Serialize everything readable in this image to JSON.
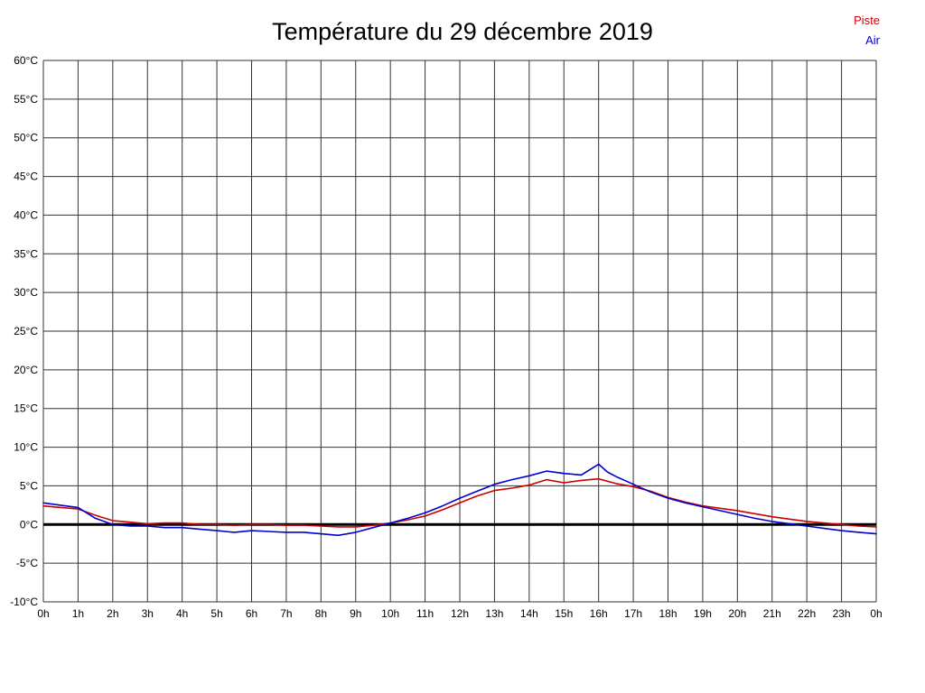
{
  "title": "Température du 29 décembre 2019",
  "legend": [
    {
      "label": "Piste",
      "color": "#cc0000"
    },
    {
      "label": "Air",
      "color": "#0000cc"
    }
  ],
  "chart_data": {
    "type": "line",
    "title": "Température du 29 décembre 2019",
    "xlabel": "",
    "ylabel": "",
    "xlim": [
      0,
      24
    ],
    "ylim": [
      -10,
      60
    ],
    "grid": true,
    "grid_color": "#333333",
    "zero_line": true,
    "zero_line_color": "#000000",
    "legend_position": "top-right",
    "x_ticks": [
      0,
      1,
      2,
      3,
      4,
      5,
      6,
      7,
      8,
      9,
      10,
      11,
      12,
      13,
      14,
      15,
      16,
      17,
      18,
      19,
      20,
      21,
      22,
      23,
      24
    ],
    "x_tick_labels": [
      "0h",
      "1h",
      "2h",
      "3h",
      "4h",
      "5h",
      "6h",
      "7h",
      "8h",
      "9h",
      "10h",
      "11h",
      "12h",
      "13h",
      "14h",
      "15h",
      "16h",
      "17h",
      "18h",
      "19h",
      "20h",
      "21h",
      "22h",
      "23h",
      "0h"
    ],
    "y_ticks": [
      -10,
      -5,
      0,
      5,
      10,
      15,
      20,
      25,
      30,
      35,
      40,
      45,
      50,
      55,
      60
    ],
    "y_tick_labels": [
      "-10°C",
      "-5°C",
      "0°C",
      "5°C",
      "10°C",
      "15°C",
      "20°C",
      "25°C",
      "30°C",
      "35°C",
      "40°C",
      "45°C",
      "50°C",
      "55°C",
      "60°C"
    ],
    "series": [
      {
        "name": "Piste",
        "color": "#cc0000",
        "x": [
          0,
          0.5,
          1,
          1.5,
          2,
          2.5,
          3,
          3.5,
          4,
          4.5,
          5,
          5.5,
          6,
          6.5,
          7,
          7.5,
          8,
          8.5,
          9,
          9.5,
          10,
          10.5,
          11,
          11.5,
          12,
          12.5,
          13,
          13.5,
          14,
          14.5,
          15,
          15.5,
          16,
          16.5,
          17,
          17.5,
          18,
          18.5,
          19,
          19.5,
          20,
          20.5,
          21,
          21.5,
          22,
          22.5,
          23,
          23.5,
          24
        ],
        "y": [
          2.4,
          2.2,
          2.0,
          1.2,
          0.5,
          0.3,
          0.1,
          0.2,
          0.2,
          0.0,
          0.0,
          -0.1,
          0.0,
          0.0,
          -0.1,
          -0.1,
          -0.2,
          -0.3,
          -0.3,
          -0.1,
          0.2,
          0.6,
          1.1,
          1.9,
          2.8,
          3.7,
          4.4,
          4.7,
          5.1,
          5.8,
          5.4,
          5.7,
          5.9,
          5.3,
          4.9,
          4.3,
          3.5,
          2.9,
          2.4,
          2.1,
          1.8,
          1.4,
          1.0,
          0.7,
          0.4,
          0.2,
          0.0,
          -0.2,
          -0.3
        ]
      },
      {
        "name": "Air",
        "color": "#0000cc",
        "x": [
          0,
          0.5,
          1,
          1.5,
          2,
          2.5,
          3,
          3.5,
          4,
          4.5,
          5,
          5.5,
          6,
          6.5,
          7,
          7.5,
          8,
          8.5,
          9,
          9.5,
          10,
          10.5,
          11,
          11.5,
          12,
          12.5,
          13,
          13.5,
          14,
          14.5,
          15,
          15.5,
          16,
          16.25,
          16.5,
          17,
          17.5,
          18,
          18.5,
          19,
          19.5,
          20,
          20.5,
          21,
          21.5,
          22,
          22.5,
          23,
          23.5,
          24
        ],
        "y": [
          2.8,
          2.5,
          2.2,
          0.8,
          0.0,
          -0.2,
          -0.2,
          -0.4,
          -0.4,
          -0.6,
          -0.8,
          -1.0,
          -0.8,
          -0.9,
          -1.0,
          -1.0,
          -1.2,
          -1.4,
          -1.0,
          -0.4,
          0.2,
          0.8,
          1.5,
          2.4,
          3.4,
          4.3,
          5.2,
          5.8,
          6.3,
          6.9,
          6.6,
          6.4,
          7.8,
          6.8,
          6.2,
          5.2,
          4.2,
          3.4,
          2.8,
          2.3,
          1.8,
          1.3,
          0.8,
          0.4,
          0.1,
          -0.2,
          -0.5,
          -0.8,
          -1.0,
          -1.2
        ]
      }
    ]
  }
}
